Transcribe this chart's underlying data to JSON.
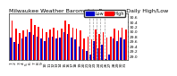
{
  "title": "Milwaukee Weather Barometric Pressure  Daily High/Low",
  "ylim": [
    28.85,
    30.75
  ],
  "yticks": [
    29.0,
    29.2,
    29.4,
    29.6,
    29.8,
    30.0,
    30.2,
    30.4,
    30.6
  ],
  "ytick_labels": [
    "29.0",
    "29.2",
    "29.4",
    "29.6",
    "29.8",
    "30.0",
    "30.2",
    "30.4",
    "30.6"
  ],
  "bar_width": 0.38,
  "background_color": "#ffffff",
  "color_high": "#ff0000",
  "color_low": "#0000cc",
  "legend_label_low": "Low",
  "legend_label_high": "High",
  "dates": [
    "1",
    "2",
    "3",
    "4",
    "5",
    "6",
    "7",
    "8",
    "9",
    "10",
    "11",
    "12",
    "13",
    "14",
    "15",
    "16",
    "17",
    "18",
    "19",
    "20",
    "21",
    "22",
    "23",
    "24",
    "25",
    "26",
    "27",
    "28",
    "29",
    "30",
    "31"
  ],
  "highs": [
    30.45,
    30.12,
    29.95,
    30.05,
    30.1,
    30.55,
    30.28,
    30.22,
    30.12,
    30.0,
    30.08,
    30.18,
    30.05,
    30.12,
    30.48,
    30.32,
    30.18,
    30.12,
    30.05,
    29.72,
    29.82,
    29.68,
    30.08,
    29.92,
    29.98,
    29.78,
    29.82,
    30.12,
    30.05,
    30.18,
    30.08
  ],
  "lows": [
    29.78,
    29.58,
    29.52,
    29.72,
    29.82,
    29.98,
    29.88,
    29.82,
    29.72,
    29.62,
    29.78,
    29.82,
    29.72,
    29.78,
    29.98,
    29.92,
    29.78,
    29.68,
    29.42,
    29.28,
    29.22,
    29.08,
    29.62,
    29.32,
    29.48,
    28.88,
    29.08,
    29.72,
    29.62,
    29.78,
    29.68
  ],
  "dashed_x": [
    20.5,
    21.5,
    22.5,
    23.5,
    24.5
  ],
  "title_fontsize": 4.5,
  "tick_fontsize": 3.2,
  "legend_fontsize": 3.5,
  "bar_bottom": 28.85
}
